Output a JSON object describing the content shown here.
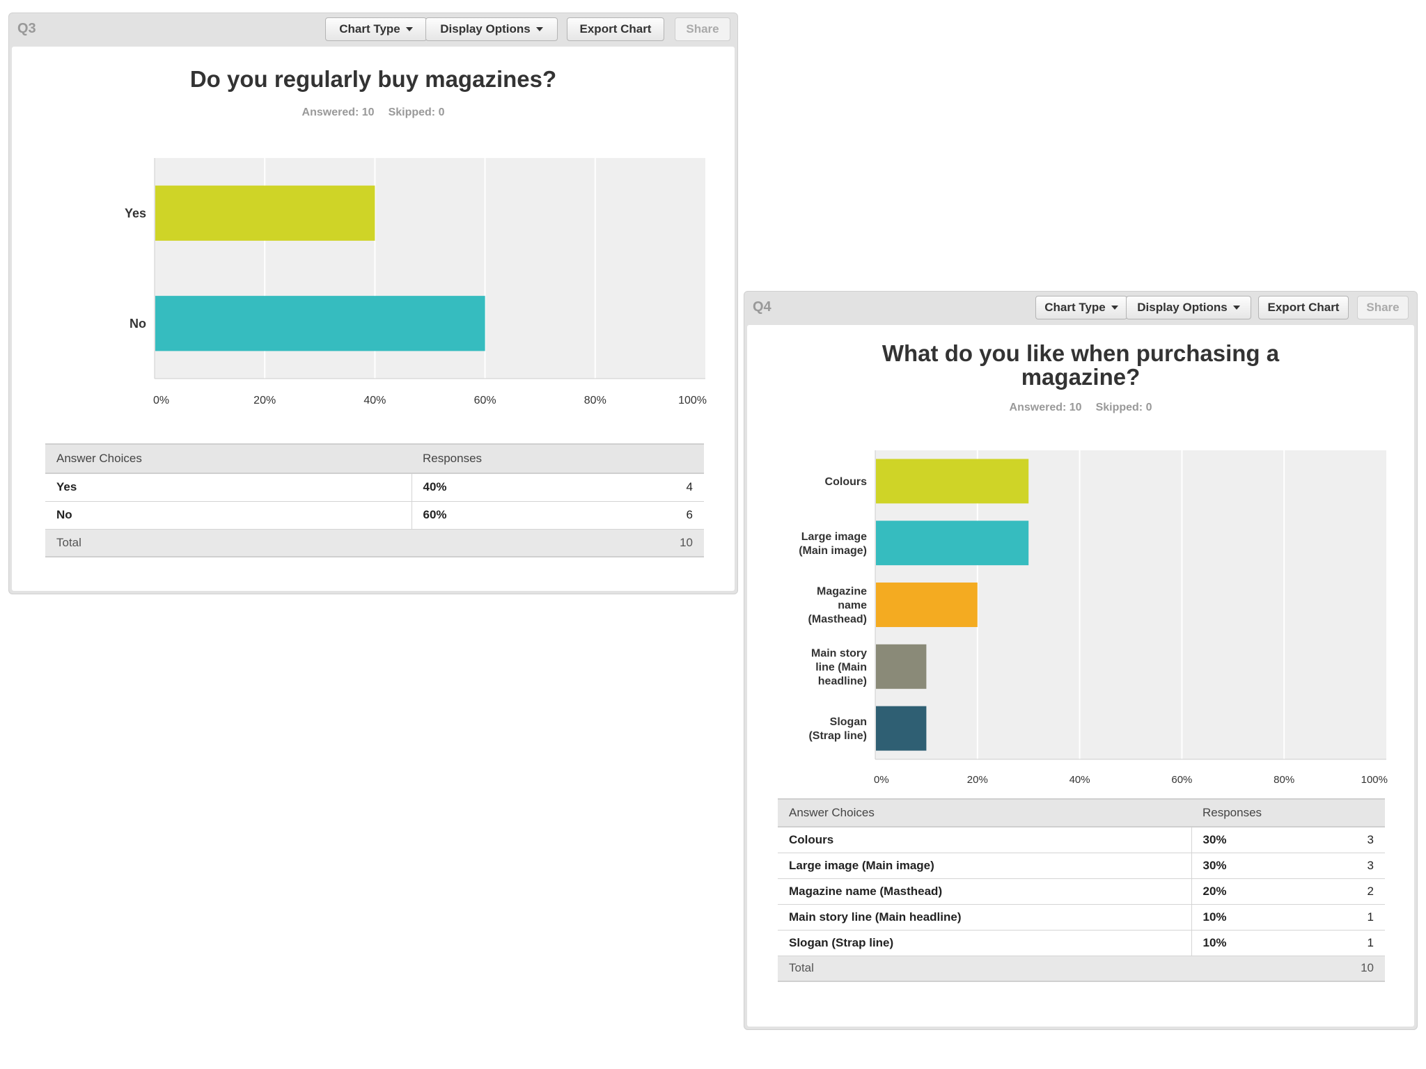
{
  "toolbar": {
    "chart_type": "Chart Type",
    "display_options": "Display Options",
    "export_chart": "Export Chart",
    "share": "Share"
  },
  "q3": {
    "label": "Q3",
    "title": "Do you regularly buy magazines?",
    "answered": "Answered: 10",
    "skipped": "Skipped: 0",
    "table": {
      "col1": "Answer Choices",
      "col2": "Responses",
      "rows": [
        {
          "choice": "Yes",
          "pct": "40%",
          "count": "4"
        },
        {
          "choice": "No",
          "pct": "60%",
          "count": "6"
        }
      ],
      "total_label": "Total",
      "total_value": "10"
    }
  },
  "q4": {
    "label": "Q4",
    "title_line1": "What do you like when purchasing a",
    "title_line2": "magazine?",
    "answered": "Answered: 10",
    "skipped": "Skipped: 0",
    "table": {
      "col1": "Answer Choices",
      "col2": "Responses",
      "rows": [
        {
          "choice": "Colours",
          "pct": "30%",
          "count": "3"
        },
        {
          "choice": "Large image (Main image)",
          "pct": "30%",
          "count": "3"
        },
        {
          "choice": "Magazine name (Masthead)",
          "pct": "20%",
          "count": "2"
        },
        {
          "choice": "Main story line (Main headline)",
          "pct": "10%",
          "count": "1"
        },
        {
          "choice": "Slogan (Strap line)",
          "pct": "10%",
          "count": "1"
        }
      ],
      "total_label": "Total",
      "total_value": "10"
    }
  },
  "chart_data": [
    {
      "type": "bar",
      "orientation": "horizontal",
      "title": "Do you regularly buy magazines?",
      "categories": [
        [
          "Yes"
        ],
        [
          "No"
        ]
      ],
      "values": [
        40,
        60
      ],
      "colors": [
        "#cfd427",
        "#36bcbf"
      ],
      "xlim": [
        0,
        100
      ],
      "xticks": [
        "0%",
        "20%",
        "40%",
        "60%",
        "80%",
        "100%"
      ],
      "grid": true
    },
    {
      "type": "bar",
      "orientation": "horizontal",
      "title": "What do you like when purchasing a magazine?",
      "categories": [
        [
          "Colours"
        ],
        [
          "Large image",
          "(Main image)"
        ],
        [
          "Magazine",
          "name",
          "(Masthead)"
        ],
        [
          "Main story",
          "line (Main",
          "headline)"
        ],
        [
          "Slogan",
          "(Strap line)"
        ]
      ],
      "values": [
        30,
        30,
        20,
        10,
        10
      ],
      "colors": [
        "#cfd427",
        "#36bcbf",
        "#f4ab21",
        "#8a8a78",
        "#2f5f73"
      ],
      "xlim": [
        0,
        100
      ],
      "xticks": [
        "0%",
        "20%",
        "40%",
        "60%",
        "80%",
        "100%"
      ],
      "grid": true
    }
  ]
}
